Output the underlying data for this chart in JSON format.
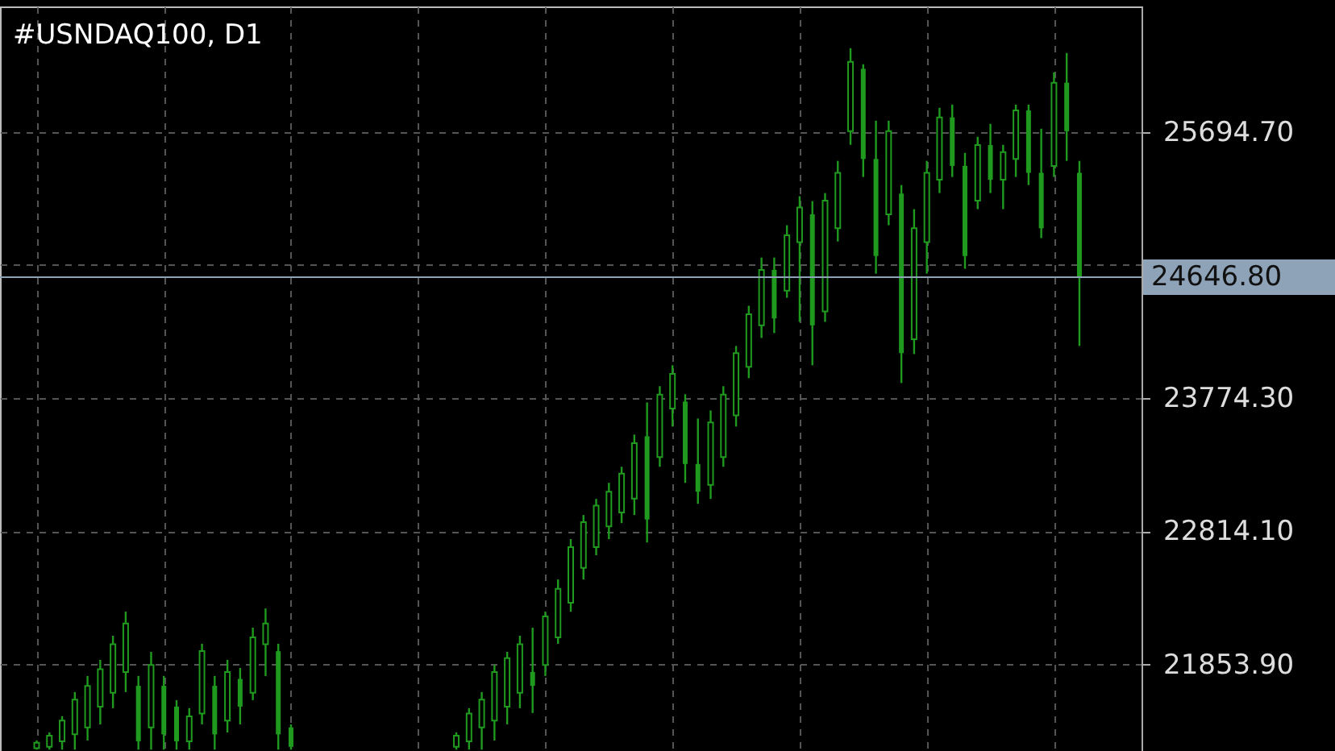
{
  "chart_data": {
    "type": "candlestick",
    "title": "#USNDAQ100, D1",
    "color": "#1f9a1f",
    "categories": [
      null,
      null,
      null,
      null,
      null,
      null,
      null,
      null,
      null,
      null,
      null,
      null,
      null,
      null,
      null,
      null,
      null,
      null,
      null,
      null,
      null,
      null,
      null,
      null,
      null,
      null,
      null,
      null,
      null,
      null,
      null,
      null,
      null,
      null,
      null,
      null,
      null,
      null,
      null,
      null,
      null,
      null,
      null,
      null,
      null,
      null,
      null,
      null,
      null,
      null,
      null,
      null,
      null,
      null,
      null,
      null,
      null,
      null,
      null,
      null,
      null,
      null,
      null,
      null,
      null,
      null,
      null,
      null,
      null,
      null,
      null,
      null,
      null,
      null,
      null,
      null,
      null,
      null,
      null,
      null,
      null,
      null,
      null
    ],
    "ohlc": [
      [
        21250,
        21306,
        21240,
        21290
      ],
      [
        21260,
        21364,
        21240,
        21340
      ],
      [
        21300,
        21481,
        21240,
        21450
      ],
      [
        21350,
        21655,
        21240,
        21600
      ],
      [
        21400,
        21771,
        21306,
        21700
      ],
      [
        21550,
        21887,
        21422,
        21820
      ],
      [
        21650,
        22061,
        21539,
        22000
      ],
      [
        21800,
        22235,
        21655,
        22150
      ],
      [
        21700,
        21771,
        21240,
        21300
      ],
      [
        21400,
        21945,
        21240,
        21850
      ],
      [
        21700,
        21771,
        21240,
        21350
      ],
      [
        21550,
        21597,
        21240,
        21300
      ],
      [
        21300,
        21539,
        21240,
        21480
      ],
      [
        21500,
        22003,
        21422,
        21950
      ],
      [
        21700,
        21771,
        21240,
        21350
      ],
      [
        21450,
        21887,
        21364,
        21800
      ],
      [
        21750,
        21829,
        21422,
        21550
      ],
      [
        21650,
        22119,
        21597,
        22050
      ],
      [
        22000,
        22258,
        21771,
        22150
      ],
      [
        21950,
        22003,
        21240,
        21350
      ],
      [
        21400,
        21422,
        21240,
        21260
      ],
      null,
      null,
      null,
      null,
      null,
      null,
      null,
      null,
      null,
      null,
      null,
      null,
      [
        21260,
        21364,
        21240,
        21340
      ],
      [
        21300,
        21539,
        21240,
        21500
      ],
      [
        21400,
        21655,
        21240,
        21600
      ],
      [
        21450,
        21852,
        21306,
        21800
      ],
      [
        21550,
        21945,
        21422,
        21900
      ],
      [
        21650,
        22061,
        21539,
        22000
      ],
      [
        21800,
        22119,
        21504,
        21700
      ],
      [
        21850,
        22235,
        21771,
        22200
      ],
      [
        22050,
        22467,
        22003,
        22400
      ],
      [
        22300,
        22758,
        22235,
        22700
      ],
      [
        22550,
        22932,
        22467,
        22880
      ],
      [
        22700,
        23048,
        22642,
        23000
      ],
      [
        22850,
        23164,
        22758,
        23100
      ],
      [
        22950,
        23280,
        22874,
        23230
      ],
      [
        23050,
        23512,
        22932,
        23450
      ],
      [
        23500,
        23744,
        22734,
        22900
      ],
      [
        23350,
        23861,
        23280,
        23800
      ],
      [
        23700,
        24012,
        23570,
        23950
      ],
      [
        23750,
        23803,
        23164,
        23300
      ],
      [
        23300,
        23628,
        23013,
        23100
      ],
      [
        23150,
        23686,
        23048,
        23600
      ],
      [
        23350,
        23861,
        23280,
        23800
      ],
      [
        23650,
        24151,
        23570,
        24100
      ],
      [
        24000,
        24441,
        23919,
        24380
      ],
      [
        24300,
        24789,
        24209,
        24700
      ],
      [
        24700,
        24789,
        24244,
        24350
      ],
      [
        24550,
        25022,
        24499,
        24950
      ],
      [
        24900,
        25231,
        24325,
        25150
      ],
      [
        25100,
        25196,
        24012,
        24300
      ],
      [
        24400,
        25254,
        24325,
        25200
      ],
      [
        25000,
        25486,
        24905,
        25400
      ],
      [
        25700,
        26299,
        25602,
        26200
      ],
      [
        26150,
        26183,
        25370,
        25500
      ],
      [
        25500,
        25776,
        24673,
        24800
      ],
      [
        25100,
        25776,
        25022,
        25700
      ],
      [
        25250,
        25312,
        23884,
        24100
      ],
      [
        24200,
        25138,
        24093,
        25000
      ],
      [
        24900,
        25486,
        24673,
        25400
      ],
      [
        25350,
        25869,
        25254,
        25800
      ],
      [
        25800,
        25892,
        25370,
        25450
      ],
      [
        25450,
        25544,
        24708,
        24800
      ],
      [
        25200,
        25660,
        25138,
        25600
      ],
      [
        25600,
        25753,
        25254,
        25350
      ],
      [
        25350,
        25602,
        25138,
        25550
      ],
      [
        25500,
        25892,
        25370,
        25850
      ],
      [
        25850,
        25892,
        25312,
        25400
      ],
      [
        25400,
        25718,
        24929,
        25000
      ],
      [
        25450,
        26125,
        25370,
        26050
      ],
      [
        26050,
        26264,
        25486,
        25700
      ],
      [
        25400,
        25486,
        24151,
        24646.8
      ]
    ],
    "ylim": [
      21230,
      26600
    ],
    "yticks": [
      {
        "value": 25694.7,
        "label": "25694.70"
      },
      {
        "value": 24734.5,
        "label": null
      },
      {
        "value": 23774.3,
        "label": "23774.30"
      },
      {
        "value": 22814.1,
        "label": "22814.10"
      },
      {
        "value": 21853.9,
        "label": "21853.90"
      }
    ],
    "ref_lines": [
      {
        "axis": "y",
        "value": 24646.8,
        "label": "24646.80",
        "color": "#8fa3b8"
      }
    ],
    "grid": true
  }
}
